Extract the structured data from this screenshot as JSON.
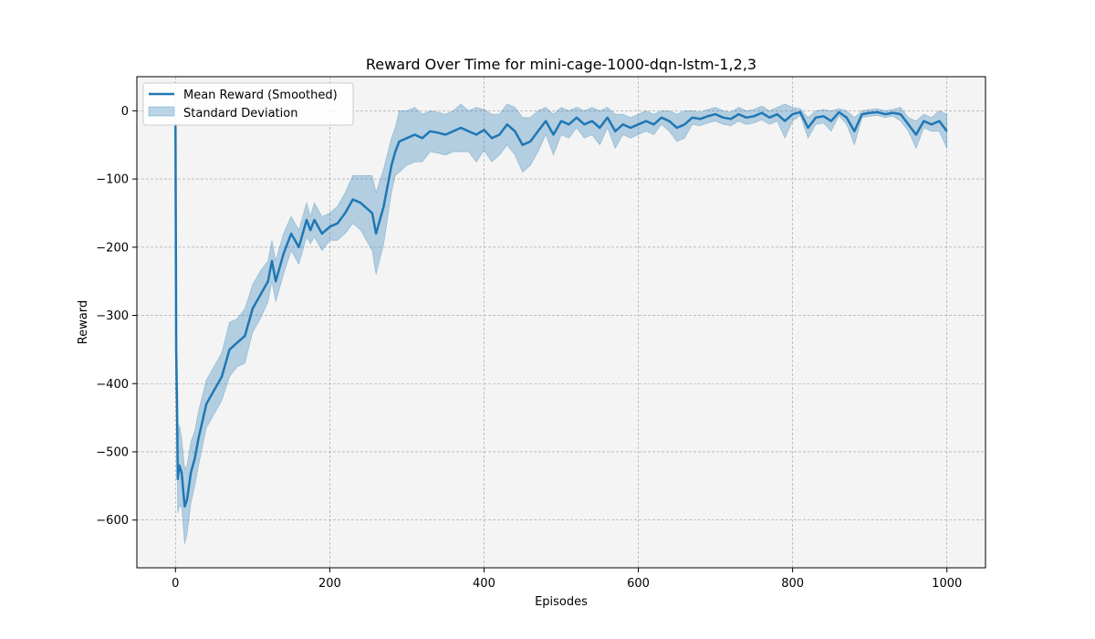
{
  "chart_data": {
    "type": "line",
    "title": "Reward Over Time for mini-cage-1000-dqn-lstm-1,2,3",
    "xlabel": "Episodes",
    "ylabel": "Reward",
    "xlim": [
      -50,
      1050
    ],
    "ylim": [
      -670,
      50
    ],
    "xticks": [
      0,
      200,
      400,
      600,
      800,
      1000
    ],
    "yticks": [
      0,
      -100,
      -200,
      -300,
      -400,
      -500,
      -600
    ],
    "grid": true,
    "legend_position": "top-left",
    "colors": {
      "mean": "#1f77b4",
      "band": "#1f77b4",
      "plot_bg": "#f4f4f4",
      "grid": "#9e9e9e"
    },
    "series": [
      {
        "name": "Mean Reward (Smoothed)",
        "x": [
          0,
          1,
          2,
          3,
          5,
          8,
          12,
          15,
          20,
          25,
          30,
          40,
          50,
          60,
          70,
          80,
          90,
          100,
          110,
          120,
          125,
          130,
          140,
          150,
          160,
          170,
          175,
          180,
          190,
          200,
          210,
          220,
          230,
          240,
          250,
          255,
          260,
          270,
          280,
          285,
          290,
          300,
          310,
          320,
          330,
          340,
          350,
          360,
          370,
          380,
          390,
          400,
          410,
          420,
          430,
          440,
          450,
          460,
          470,
          480,
          490,
          500,
          510,
          520,
          530,
          540,
          550,
          560,
          570,
          580,
          590,
          600,
          610,
          620,
          630,
          640,
          650,
          660,
          670,
          680,
          690,
          700,
          710,
          720,
          730,
          740,
          750,
          760,
          770,
          780,
          790,
          800,
          810,
          820,
          830,
          840,
          850,
          860,
          870,
          880,
          890,
          900,
          910,
          920,
          930,
          940,
          950,
          960,
          970,
          980,
          990,
          1000
        ],
        "values": [
          -20,
          -350,
          -430,
          -540,
          -520,
          -530,
          -580,
          -570,
          -530,
          -510,
          -480,
          -430,
          -410,
          -390,
          -350,
          -340,
          -330,
          -290,
          -270,
          -250,
          -220,
          -250,
          -210,
          -180,
          -200,
          -160,
          -175,
          -160,
          -180,
          -170,
          -165,
          -150,
          -130,
          -135,
          -145,
          -150,
          -180,
          -140,
          -80,
          -60,
          -45,
          -40,
          -35,
          -40,
          -30,
          -32,
          -35,
          -30,
          -25,
          -30,
          -35,
          -28,
          -40,
          -35,
          -20,
          -30,
          -50,
          -45,
          -30,
          -15,
          -35,
          -15,
          -20,
          -10,
          -20,
          -15,
          -25,
          -10,
          -30,
          -20,
          -25,
          -20,
          -15,
          -20,
          -10,
          -15,
          -25,
          -20,
          -10,
          -12,
          -8,
          -5,
          -10,
          -12,
          -5,
          -10,
          -8,
          -3,
          -10,
          -5,
          -15,
          -5,
          -2,
          -25,
          -10,
          -8,
          -15,
          -2,
          -10,
          -30,
          -5,
          -3,
          -2,
          -5,
          -3,
          -5,
          -20,
          -35,
          -15,
          -20,
          -15,
          -30
        ]
      },
      {
        "name": "Standard Deviation",
        "x": [
          0,
          1,
          2,
          3,
          5,
          8,
          12,
          15,
          20,
          25,
          30,
          40,
          50,
          60,
          70,
          80,
          90,
          100,
          110,
          120,
          125,
          130,
          140,
          150,
          160,
          170,
          175,
          180,
          190,
          200,
          210,
          220,
          230,
          240,
          250,
          255,
          260,
          270,
          280,
          285,
          290,
          300,
          310,
          320,
          330,
          340,
          350,
          360,
          370,
          380,
          390,
          400,
          410,
          420,
          430,
          440,
          450,
          460,
          470,
          480,
          490,
          500,
          510,
          520,
          530,
          540,
          550,
          560,
          570,
          580,
          590,
          600,
          610,
          620,
          630,
          640,
          650,
          660,
          670,
          680,
          690,
          700,
          710,
          720,
          730,
          740,
          750,
          760,
          770,
          780,
          790,
          800,
          810,
          820,
          830,
          840,
          850,
          860,
          870,
          880,
          890,
          900,
          910,
          920,
          930,
          940,
          950,
          960,
          970,
          980,
          990,
          1000
        ],
        "std": [
          5,
          20,
          30,
          50,
          60,
          50,
          55,
          50,
          45,
          40,
          40,
          35,
          35,
          35,
          40,
          35,
          40,
          35,
          35,
          30,
          30,
          30,
          30,
          25,
          25,
          25,
          20,
          25,
          25,
          20,
          25,
          30,
          35,
          40,
          50,
          55,
          60,
          55,
          40,
          35,
          45,
          40,
          40,
          35,
          30,
          30,
          30,
          30,
          35,
          30,
          40,
          30,
          35,
          30,
          30,
          35,
          40,
          35,
          30,
          20,
          30,
          20,
          20,
          15,
          20,
          20,
          25,
          15,
          25,
          15,
          15,
          15,
          15,
          15,
          10,
          15,
          20,
          20,
          10,
          10,
          10,
          10,
          10,
          10,
          10,
          10,
          10,
          10,
          10,
          10,
          25,
          10,
          5,
          15,
          10,
          10,
          15,
          5,
          10,
          20,
          5,
          5,
          5,
          5,
          5,
          10,
          10,
          20,
          10,
          10,
          15,
          25
        ]
      }
    ]
  }
}
